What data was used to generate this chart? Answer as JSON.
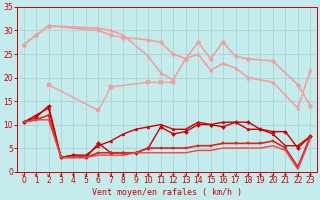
{
  "xlabel": "Vent moyen/en rafales ( km/h )",
  "xlim": [
    -0.5,
    23.5
  ],
  "ylim": [
    0,
    35
  ],
  "yticks": [
    0,
    5,
    10,
    15,
    20,
    25,
    30,
    35
  ],
  "xticks": [
    0,
    1,
    2,
    3,
    4,
    5,
    6,
    7,
    8,
    9,
    10,
    11,
    12,
    13,
    14,
    15,
    16,
    17,
    18,
    19,
    20,
    21,
    22,
    23
  ],
  "bg_color": "#c5ecec",
  "grid_color": "#aad4d4",
  "series": [
    {
      "x": [
        0,
        1,
        2,
        6,
        7,
        8,
        10,
        11,
        12,
        13,
        14,
        15,
        16,
        17,
        18,
        20,
        22,
        23
      ],
      "y": [
        27,
        29,
        31,
        30,
        29,
        28.5,
        28,
        27.5,
        25,
        24,
        27.5,
        24,
        27.5,
        24.5,
        24,
        23.5,
        18.5,
        14
      ],
      "color": "#f0a0a0",
      "lw": 1.2,
      "marker": "D",
      "ms": 2.5
    },
    {
      "x": [
        0,
        1,
        2,
        6,
        7,
        8,
        10,
        11,
        12,
        13,
        14,
        15,
        16,
        17,
        18,
        20,
        22,
        23
      ],
      "y": [
        27,
        29,
        31,
        30.5,
        30,
        29,
        24.5,
        21,
        19.5,
        24,
        25,
        21.5,
        23,
        22,
        20,
        19,
        13.5,
        21.5
      ],
      "color": "#f0a0a0",
      "lw": 1.2,
      "marker": "^",
      "ms": 2.5
    },
    {
      "x": [
        2,
        6,
        7,
        10,
        11,
        12
      ],
      "y": [
        18.5,
        13,
        18,
        19,
        19,
        19
      ],
      "color": "#f0a0a0",
      "lw": 1.0,
      "marker": "s",
      "ms": 2.5
    },
    {
      "x": [
        0,
        1,
        2,
        3,
        4,
        5,
        6,
        7,
        8,
        9,
        10,
        11,
        12,
        13,
        14,
        15,
        16,
        17,
        18,
        19,
        20,
        21,
        22,
        23
      ],
      "y": [
        10.5,
        11.5,
        14,
        3,
        3.5,
        3,
        6,
        4,
        4,
        4,
        5,
        9.5,
        8,
        8.5,
        10,
        10,
        9.5,
        10.5,
        10.5,
        9,
        8.5,
        8.5,
        5,
        7.5
      ],
      "color": "#cc0000",
      "lw": 1.0,
      "marker": "D",
      "ms": 2.0
    },
    {
      "x": [
        0,
        1,
        2,
        3,
        4,
        5,
        6,
        7,
        8,
        9,
        10,
        11,
        12,
        13,
        14,
        15,
        16,
        17,
        18,
        19,
        20,
        21,
        22,
        23
      ],
      "y": [
        10.5,
        12,
        13.5,
        3,
        3.5,
        3.5,
        5.5,
        6.5,
        8,
        9,
        9.5,
        10,
        9,
        9,
        10.5,
        10,
        10.5,
        10.5,
        9,
        9,
        8,
        5.5,
        5.5,
        7.5
      ],
      "color": "#cc0000",
      "lw": 1.0,
      "marker": "^",
      "ms": 2.0
    },
    {
      "x": [
        0,
        1,
        2,
        3,
        4,
        5,
        6,
        7,
        8,
        9,
        10,
        11,
        12,
        13,
        14,
        15,
        16,
        17,
        18,
        19,
        20,
        21,
        22,
        23
      ],
      "y": [
        10.5,
        11,
        12,
        3,
        3,
        3,
        4,
        4,
        4,
        4,
        5,
        5,
        5,
        5,
        5.5,
        5.5,
        6,
        6,
        6,
        6,
        6.5,
        5,
        1,
        7.5
      ],
      "color": "#dd2222",
      "lw": 1.2,
      "marker": "s",
      "ms": 2.0
    },
    {
      "x": [
        0,
        1,
        2,
        3,
        4,
        5,
        6,
        7,
        8,
        9,
        10,
        11,
        12,
        13,
        14,
        15,
        16,
        17,
        18,
        19,
        20,
        21,
        22,
        23
      ],
      "y": [
        10.5,
        11,
        11,
        3,
        3,
        3,
        3.5,
        3.5,
        3.5,
        4,
        4,
        4,
        4,
        4,
        4.5,
        4.5,
        5,
        5,
        5,
        5,
        5.5,
        4.5,
        0.5,
        7
      ],
      "color": "#ee4444",
      "lw": 1.0,
      "marker": null,
      "ms": 0
    }
  ],
  "axis_fontsize": 6,
  "tick_fontsize": 5.5
}
